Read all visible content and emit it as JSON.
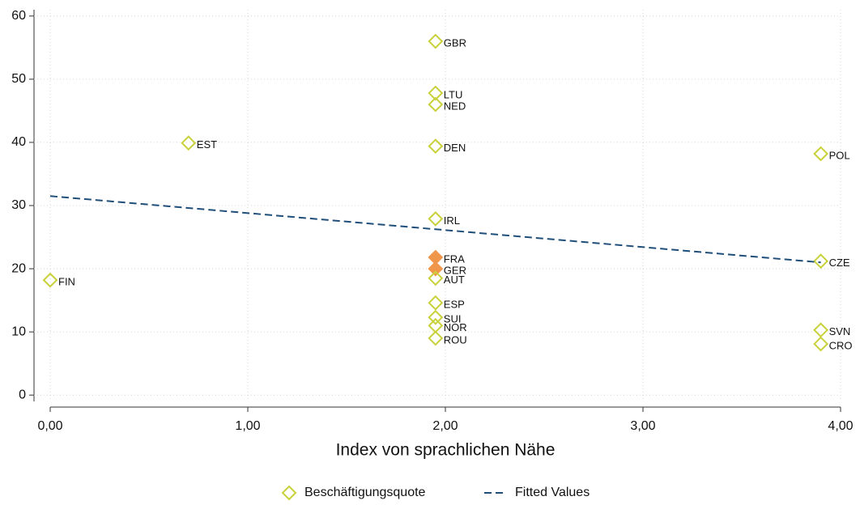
{
  "chart_data": {
    "type": "scatter",
    "xlabel": "Index von sprachlichen Nähe",
    "xlim": [
      -0.082,
      4.0
    ],
    "ylim": [
      -1,
      61
    ],
    "xticks": [
      {
        "value": 0,
        "label": "0,00"
      },
      {
        "value": 1,
        "label": "1,00"
      },
      {
        "value": 2,
        "label": "2,00"
      },
      {
        "value": 3,
        "label": "3,00"
      },
      {
        "value": 4,
        "label": "4,00"
      }
    ],
    "yticks": [
      0,
      10,
      20,
      30,
      40,
      50,
      60
    ],
    "grid": true,
    "legend": "bottom",
    "series": [
      {
        "name": "Beschäftigungsquote",
        "color": "#c9d13a",
        "highlight_index": 7,
        "highlight_color": "#f0964a",
        "labels": [
          "FIN",
          "EST",
          "GBR",
          "LTU",
          "NED",
          "DEN",
          "IRL",
          "FRA",
          "GER",
          "AUT",
          "ESP",
          "SUI",
          "NOR",
          "ROU",
          "POL",
          "CZE",
          "SVN",
          "CRO"
        ],
        "x": [
          0,
          0.7,
          1.95,
          1.95,
          1.95,
          1.95,
          1.95,
          1.95,
          1.95,
          1.95,
          1.95,
          1.95,
          1.95,
          1.95,
          3.9,
          3.9,
          3.9,
          3.9
        ],
        "values": [
          18.2,
          39.9,
          56.0,
          47.8,
          46.0,
          39.4,
          27.9,
          21.8,
          20.0,
          18.5,
          14.6,
          12.3,
          11.0,
          9.0,
          38.2,
          21.2,
          10.3,
          8.1
        ]
      },
      {
        "name": "Fitted Values",
        "color": "#1f4e79",
        "kind": "dashed-line",
        "x": [
          0,
          3.9
        ],
        "values": [
          31.5,
          21.0
        ]
      }
    ]
  }
}
